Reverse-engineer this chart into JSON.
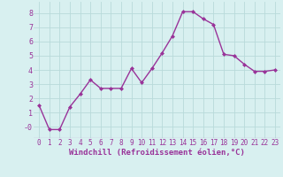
{
  "x": [
    0,
    1,
    2,
    3,
    4,
    5,
    6,
    7,
    8,
    9,
    10,
    11,
    12,
    13,
    14,
    15,
    16,
    17,
    18,
    19,
    20,
    21,
    22,
    23
  ],
  "y": [
    1.5,
    -0.2,
    -0.2,
    1.4,
    2.3,
    3.3,
    2.7,
    2.7,
    2.7,
    4.1,
    3.1,
    4.1,
    5.2,
    6.4,
    8.1,
    8.1,
    7.6,
    7.2,
    5.1,
    5.0,
    4.4,
    3.9,
    3.9,
    4.0
  ],
  "line_color": "#993399",
  "marker": "D",
  "marker_size": 2.0,
  "linewidth": 1.0,
  "xlabel": "Windchill (Refroidissement éolien,°C)",
  "xlabel_fontsize": 6.5,
  "xlabel_color": "#993399",
  "bg_color": "#d8f0f0",
  "grid_color": "#b8dada",
  "tick_color": "#993399",
  "ylim": [
    -0.8,
    8.8
  ],
  "xlim": [
    -0.5,
    23.5
  ],
  "yticks": [
    0,
    1,
    2,
    3,
    4,
    5,
    6,
    7,
    8
  ],
  "ytick_labels": [
    "-0",
    "1",
    "2",
    "3",
    "4",
    "5",
    "6",
    "7",
    "8"
  ],
  "xticks": [
    0,
    1,
    2,
    3,
    4,
    5,
    6,
    7,
    8,
    9,
    10,
    11,
    12,
    13,
    14,
    15,
    16,
    17,
    18,
    19,
    20,
    21,
    22,
    23
  ],
  "tick_fontsize": 5.5
}
